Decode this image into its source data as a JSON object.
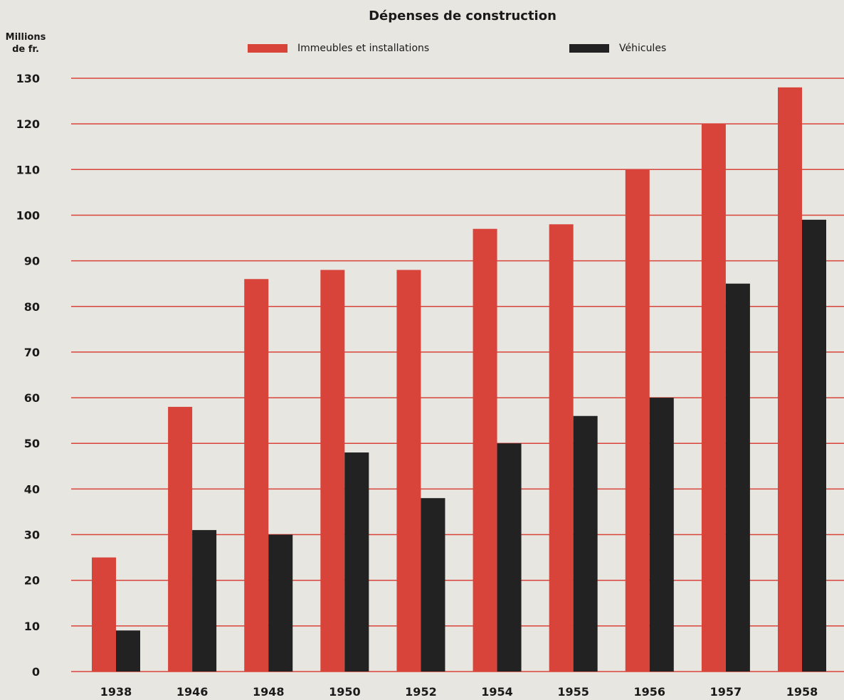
{
  "chart_data": {
    "type": "bar",
    "title": "Dépenses de construction",
    "ylabel": "Millions de fr.",
    "ylabel_lines": [
      "Millions",
      "de fr."
    ],
    "categories": [
      "1938",
      "1946",
      "1948",
      "1950",
      "1952",
      "1954",
      "1955",
      "1956",
      "1957",
      "1958"
    ],
    "series": [
      {
        "name": "Immeubles et installations",
        "color": "#d8433a",
        "values": [
          25,
          58,
          86,
          88,
          88,
          97,
          98,
          110,
          120,
          128
        ]
      },
      {
        "name": "Véhicules",
        "color": "#222222",
        "values": [
          9,
          31,
          30,
          48,
          38,
          50,
          56,
          60,
          85,
          99
        ]
      }
    ],
    "yticks": [
      0,
      10,
      20,
      30,
      40,
      50,
      60,
      70,
      80,
      90,
      100,
      110,
      120,
      130
    ],
    "ylim": [
      0,
      130
    ],
    "grid": true,
    "grid_color": "#d8433a",
    "legend_position": "top"
  }
}
